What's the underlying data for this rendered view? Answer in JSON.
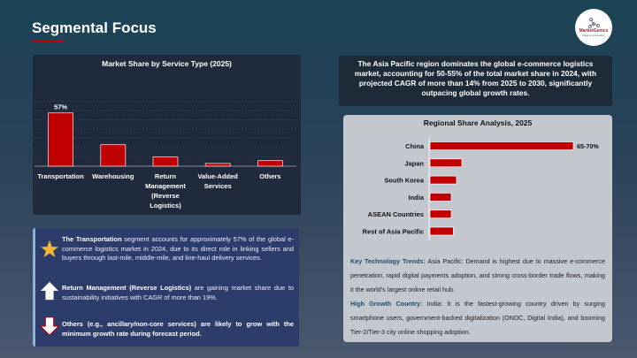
{
  "header": {
    "title": "Segmental Focus",
    "logo_text": "MarketGenics",
    "logo_tagline": "Ideas to Innovation"
  },
  "colors": {
    "bar": "#c00000",
    "accent": "#c00000"
  },
  "chart_data": [
    {
      "type": "bar",
      "title": "Market Share by Service Type (2025)",
      "categories": [
        "Transportation",
        "Warehousing",
        "Return Management (Reverse Logistics)",
        "Value-Added Services",
        "Others"
      ],
      "category_lines": [
        [
          "Transportation"
        ],
        [
          "Warehousing"
        ],
        [
          "Return",
          "Management",
          "(Reverse",
          "Logistics)"
        ],
        [
          "Value-Added",
          "Services"
        ],
        [
          "Others"
        ]
      ],
      "values": [
        57,
        23,
        10,
        3,
        6
      ],
      "unit": "%",
      "data_labels": [
        "57%",
        "",
        "",
        "",
        ""
      ],
      "ylim": [
        0,
        70
      ],
      "grid": true
    },
    {
      "type": "bar",
      "orientation": "horizontal",
      "title": "Regional Share Analysis, 2025",
      "categories": [
        "China",
        "Japan",
        "South Korea",
        "India",
        "ASEAN Countries",
        "Rest of Asia Pacific"
      ],
      "values": [
        67.5,
        15,
        12.5,
        10,
        10,
        11
      ],
      "unit": "%",
      "data_labels": [
        "65-70%",
        "",
        "",
        "",
        "",
        ""
      ]
    }
  ],
  "bullets": [
    {
      "icon": "star-icon",
      "bold": "The Transportation",
      "text": " segment accounts for approximately 57% of the global e-commerce logistics market in 2024, due to its direct role in linking sellers and buyers through last-mile, middle-mile, and line-haul delivery services."
    },
    {
      "icon": "arrow-up-icon",
      "bold": "Return Management (Reverse Logistics)",
      "text": " are gaining market share due to sustainability initiatives with CAGR of more than 19%."
    },
    {
      "icon": "arrow-down-icon",
      "bold": "Others (e.g., ancillary/non-core services) are likely to grow with the minimum growth rate during forecast period.",
      "text": ""
    }
  ],
  "summary": "The Asia Pacific region dominates the global e-commerce logistics market, accounting for 50-55% of the total market share in 2024, with projected CAGR of more than 14% from 2025 to 2030, significantly outpacing global growth rates.",
  "notes": [
    {
      "key": "Key Technology Trends:",
      "text": " Asia Pacific: Demand is highest due to massive e-commerce penetration, rapid digital payments adoption, and strong cross-border trade flows, making it the world's largest online retail hub."
    },
    {
      "key": "High Growth Country:",
      "text": " India: It is the fastest-growing country driven by surging smartphone users, government-backed digitalization (ONDC, Digital India), and booming Tier-2/Tier-3 city online shopping adoption."
    }
  ]
}
